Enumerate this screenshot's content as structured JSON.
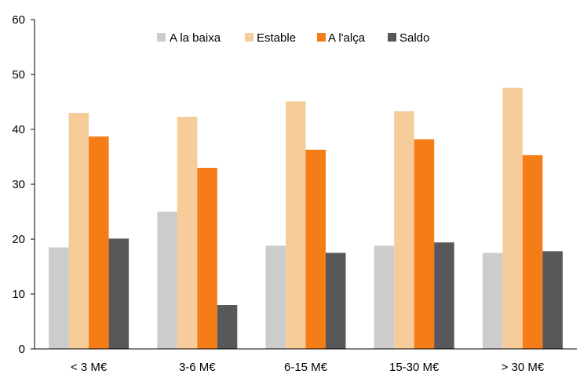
{
  "chart_data": {
    "type": "bar",
    "categories": [
      "< 3 M€",
      "3-6 M€",
      "6-15 M€",
      "15-30 M€",
      "> 30 M€"
    ],
    "series": [
      {
        "name": "A la baixa",
        "color": "#cccccc",
        "values": [
          18.5,
          25.0,
          18.8,
          18.8,
          17.5
        ]
      },
      {
        "name": "Estable",
        "color": "#f5cc9a",
        "values": [
          43.0,
          42.3,
          45.1,
          43.3,
          47.6
        ]
      },
      {
        "name": "A l'alça",
        "color": "#f47d18",
        "values": [
          38.7,
          33.0,
          36.3,
          38.2,
          35.3
        ]
      },
      {
        "name": "Saldo",
        "color": "#58585a",
        "values": [
          20.1,
          8.0,
          17.5,
          19.4,
          17.8
        ]
      }
    ],
    "ylim": [
      0,
      60
    ],
    "yticks": [
      "0",
      "10",
      "20",
      "30",
      "40",
      "50",
      "60"
    ],
    "title": "",
    "xlabel": "",
    "ylabel": "",
    "grid": false,
    "legend_position": "top-center"
  }
}
